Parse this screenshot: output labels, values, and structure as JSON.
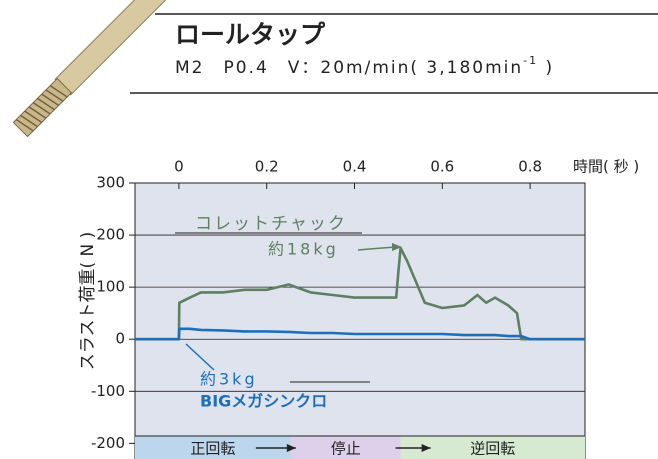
{
  "header": {
    "title": "ロールタップ",
    "subtitle": "M2　P0.4　V：20m/min( 3,180min",
    "subtitle_sup": "-1",
    "subtitle_end": " )"
  },
  "chart_data": {
    "type": "line",
    "xlabel": "時間( 秒 )",
    "ylabel": "スラスト荷重( N )",
    "xlim": [
      -0.1,
      0.925
    ],
    "xticks": [
      0,
      0.2,
      0.4,
      0.6,
      0.8
    ],
    "ylim": [
      -230,
      300
    ],
    "yticks": [
      -200,
      -100,
      0,
      100,
      200,
      300
    ],
    "grid": true,
    "x": [
      -0.1,
      -0.05,
      0,
      0.001,
      0.025,
      0.05,
      0.1,
      0.15,
      0.2,
      0.25,
      0.3,
      0.35,
      0.4,
      0.45,
      0.495,
      0.5,
      0.505,
      0.52,
      0.54,
      0.56,
      0.6,
      0.65,
      0.68,
      0.7,
      0.72,
      0.75,
      0.77,
      0.78,
      0.8,
      0.85,
      0.9,
      0.925
    ],
    "series": [
      {
        "name": "コレットチャック",
        "color": "#5f7f63",
        "values": [
          0,
          0,
          0,
          70,
          80,
          90,
          90,
          95,
          95,
          105,
          90,
          85,
          80,
          80,
          80,
          130,
          175,
          150,
          110,
          70,
          60,
          65,
          85,
          70,
          80,
          65,
          50,
          0,
          0,
          0,
          0,
          0
        ]
      },
      {
        "name": "BIGメガシンクロ",
        "color": "#1e6fb8",
        "values": [
          0,
          0,
          0,
          20,
          20,
          18,
          17,
          15,
          15,
          14,
          12,
          12,
          10,
          10,
          10,
          10,
          10,
          10,
          10,
          10,
          10,
          8,
          8,
          8,
          8,
          6,
          6,
          6,
          0,
          0,
          0,
          0
        ]
      }
    ],
    "annotations": [
      "約18kg",
      "約3kg"
    ],
    "phases": [
      {
        "label": "正回転",
        "start": -0.1,
        "end": 0.255,
        "color": "#bcd6ee"
      },
      {
        "label": "停止",
        "start": 0.255,
        "end": 0.505,
        "color": "#dcd0ea"
      },
      {
        "label": "逆回転",
        "start": 0.505,
        "end": 0.925,
        "color": "#d6ead2"
      }
    ]
  }
}
